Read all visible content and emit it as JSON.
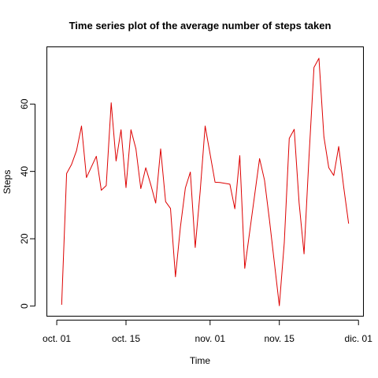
{
  "chart_data": {
    "type": "line",
    "title": "Time series plot of the average number of steps taken",
    "xlabel": "Time",
    "ylabel": "Steps",
    "x_tick_labels": [
      "oct. 01",
      "oct. 15",
      "nov. 01",
      "nov. 15",
      "dic. 01"
    ],
    "x_tick_dates": [
      "2012-10-01",
      "2012-10-15",
      "2012-11-01",
      "2012-11-15",
      "2012-12-01"
    ],
    "y_ticks": [
      0,
      20,
      40,
      60
    ],
    "xlim": [
      "2012-09-29",
      "2012-12-02"
    ],
    "ylim": [
      -3,
      77
    ],
    "grid": false,
    "line_color": "#dd0000",
    "series": [
      {
        "x": [
          "2012-10-02",
          "2012-10-03",
          "2012-10-04",
          "2012-10-05",
          "2012-10-06",
          "2012-10-07",
          "2012-10-09",
          "2012-10-10",
          "2012-10-11",
          "2012-10-12",
          "2012-10-13",
          "2012-10-14",
          "2012-10-15",
          "2012-10-16",
          "2012-10-17",
          "2012-10-18",
          "2012-10-19",
          "2012-10-20",
          "2012-10-21",
          "2012-10-22",
          "2012-10-23",
          "2012-10-24",
          "2012-10-25",
          "2012-10-26",
          "2012-10-27",
          "2012-10-28",
          "2012-10-29",
          "2012-10-30",
          "2012-10-31",
          "2012-11-02",
          "2012-11-03",
          "2012-11-05",
          "2012-11-06",
          "2012-11-07",
          "2012-11-08",
          "2012-11-11",
          "2012-11-12",
          "2012-11-13",
          "2012-11-15",
          "2012-11-16",
          "2012-11-17",
          "2012-11-18",
          "2012-11-19",
          "2012-11-20",
          "2012-11-21",
          "2012-11-22",
          "2012-11-23",
          "2012-11-24",
          "2012-11-25",
          "2012-11-26",
          "2012-11-27",
          "2012-11-28",
          "2012-11-29"
        ],
        "values": [
          0.4,
          39.4,
          42.1,
          46.2,
          53.5,
          38.2,
          44.5,
          34.4,
          35.8,
          60.4,
          43.1,
          52.4,
          35.2,
          52.4,
          46.7,
          34.9,
          41.1,
          36.1,
          30.6,
          46.7,
          31.0,
          29.0,
          8.7,
          23.5,
          35.1,
          39.8,
          17.4,
          34.1,
          53.5,
          36.8,
          36.7,
          36.2,
          28.9,
          44.7,
          11.2,
          43.8,
          37.4,
          25.5,
          0.1,
          18.9,
          49.8,
          52.5,
          30.7,
          15.5,
          44.4,
          70.9,
          73.6,
          50.3,
          41.1,
          38.8,
          47.4,
          35.4,
          24.5
        ]
      }
    ]
  }
}
